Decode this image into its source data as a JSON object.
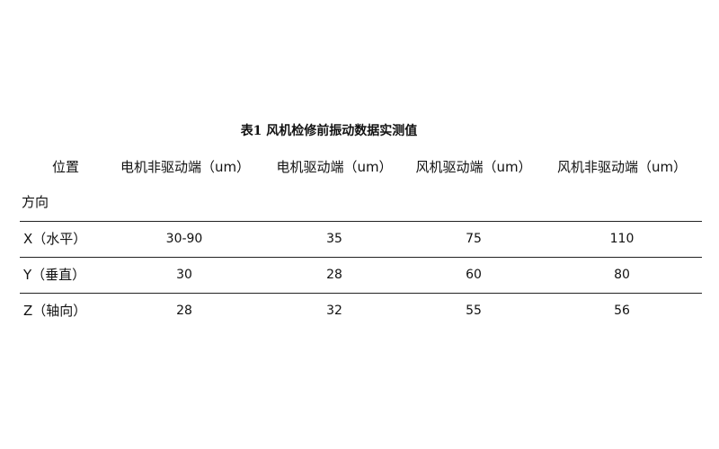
{
  "table": {
    "caption": "表1  风机检修前振动数据实测值",
    "corner_top": "位置",
    "corner_bottom": "方向",
    "columns": [
      "电机非驱动端（um）",
      "电机驱动端（um）",
      "风机驱动端（um）",
      "风机非驱动端（um）"
    ],
    "rows": [
      {
        "label": "X（水平）",
        "values": [
          "30-90",
          "35",
          "75",
          "110"
        ]
      },
      {
        "label": "Y（垂直）",
        "values": [
          "30",
          "28",
          "60",
          "80"
        ]
      },
      {
        "label": "Z（轴向）",
        "values": [
          "28",
          "32",
          "55",
          "56"
        ]
      }
    ]
  }
}
